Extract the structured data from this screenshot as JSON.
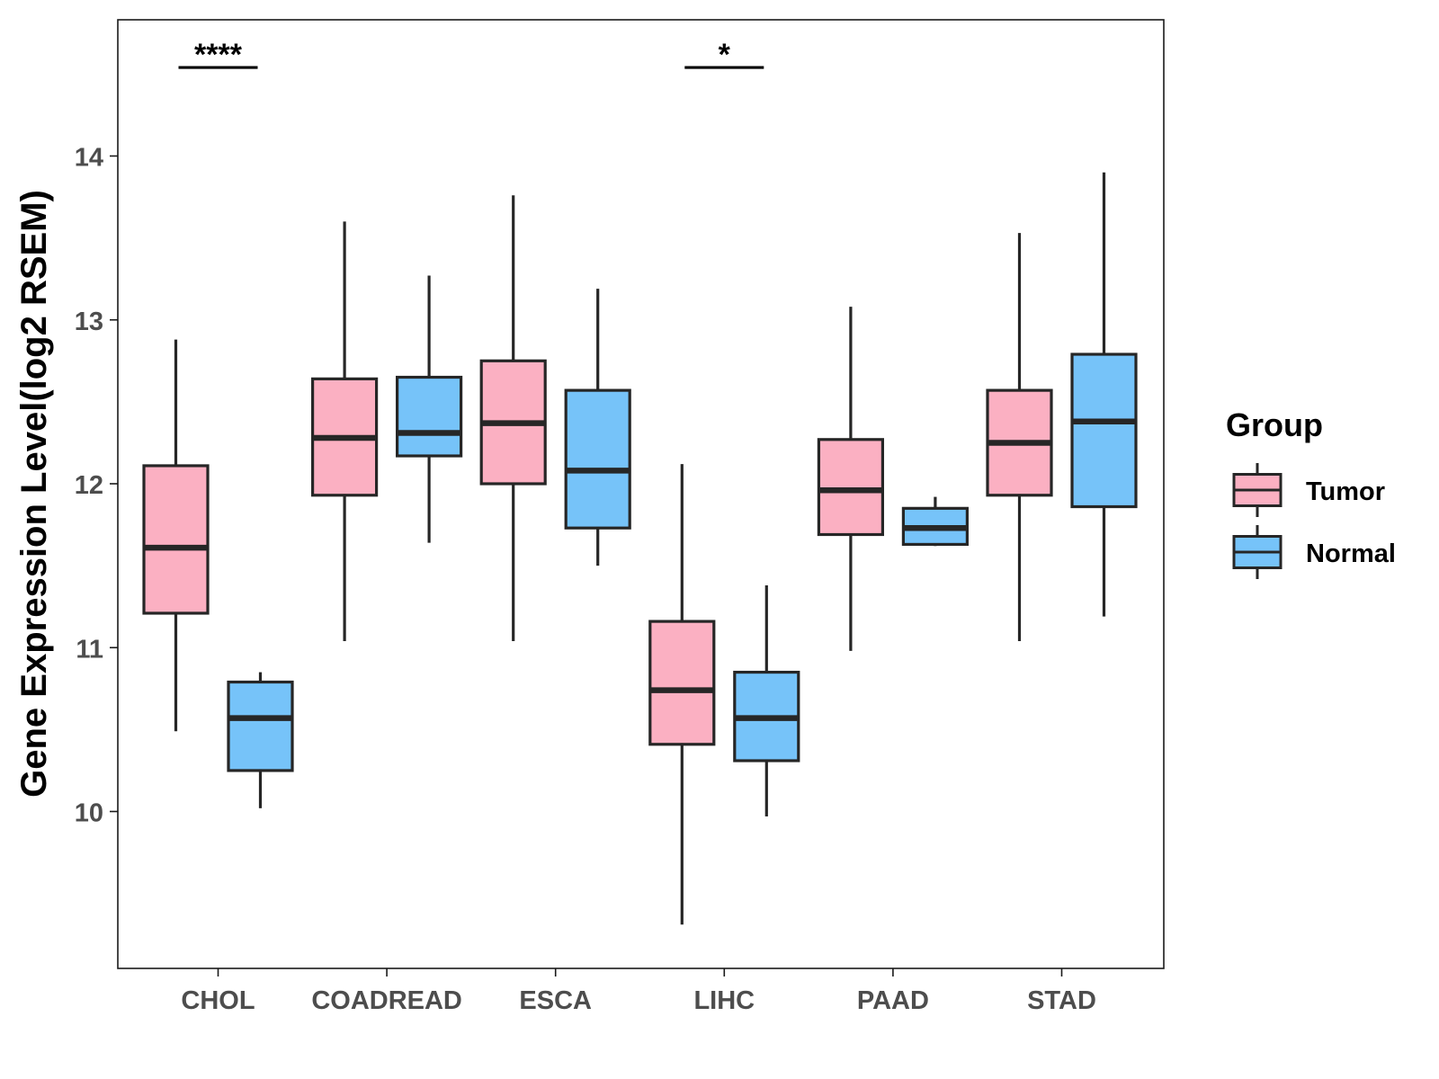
{
  "chart_data": {
    "type": "boxplot",
    "title": "",
    "xlabel": "",
    "ylabel": "Gene Expression Level(log2 RSEM)",
    "ylim": [
      9.05,
      14.82
    ],
    "yticks": [
      10,
      11,
      12,
      13,
      14
    ],
    "categories": [
      "CHOL",
      "COADREAD",
      "ESCA",
      "LIHC",
      "PAAD",
      "STAD"
    ],
    "legend": {
      "title": "Group",
      "position": "right",
      "entries": [
        "Tumor",
        "Normal"
      ]
    },
    "colors": {
      "Tumor": "#FBB0C2",
      "Normal": "#76C3F9",
      "outline": "#262626"
    },
    "series": [
      {
        "name": "Tumor",
        "boxes": [
          {
            "category": "CHOL",
            "min": 10.49,
            "q1": 11.21,
            "median": 11.61,
            "q3": 12.11,
            "max": 12.88
          },
          {
            "category": "COADREAD",
            "min": 11.04,
            "q1": 11.93,
            "median": 12.28,
            "q3": 12.64,
            "max": 13.6
          },
          {
            "category": "ESCA",
            "min": 11.04,
            "q1": 12.0,
            "median": 12.37,
            "q3": 12.75,
            "max": 13.76
          },
          {
            "category": "LIHC",
            "min": 9.31,
            "q1": 10.41,
            "median": 10.74,
            "q3": 11.16,
            "max": 12.12
          },
          {
            "category": "PAAD",
            "min": 10.98,
            "q1": 11.69,
            "median": 11.96,
            "q3": 12.27,
            "max": 13.08
          },
          {
            "category": "STAD",
            "min": 11.04,
            "q1": 11.93,
            "median": 12.25,
            "q3": 12.57,
            "max": 13.53
          }
        ]
      },
      {
        "name": "Normal",
        "boxes": [
          {
            "category": "CHOL",
            "min": 10.02,
            "q1": 10.25,
            "median": 10.57,
            "q3": 10.79,
            "max": 10.85
          },
          {
            "category": "COADREAD",
            "min": 11.64,
            "q1": 12.17,
            "median": 12.31,
            "q3": 12.65,
            "max": 13.27
          },
          {
            "category": "ESCA",
            "min": 11.5,
            "q1": 11.73,
            "median": 12.08,
            "q3": 12.57,
            "max": 13.19
          },
          {
            "category": "LIHC",
            "min": 9.97,
            "q1": 10.31,
            "median": 10.57,
            "q3": 10.85,
            "max": 11.38
          },
          {
            "category": "PAAD",
            "min": 11.62,
            "q1": 11.63,
            "median": 11.73,
            "q3": 11.85,
            "max": 11.92
          },
          {
            "category": "STAD",
            "min": 11.19,
            "q1": 11.86,
            "median": 12.38,
            "q3": 12.79,
            "max": 13.9
          }
        ]
      }
    ],
    "annotations": [
      {
        "category": "CHOL",
        "label": "****",
        "y": 14.54
      },
      {
        "category": "LIHC",
        "label": "*",
        "y": 14.54
      }
    ]
  }
}
